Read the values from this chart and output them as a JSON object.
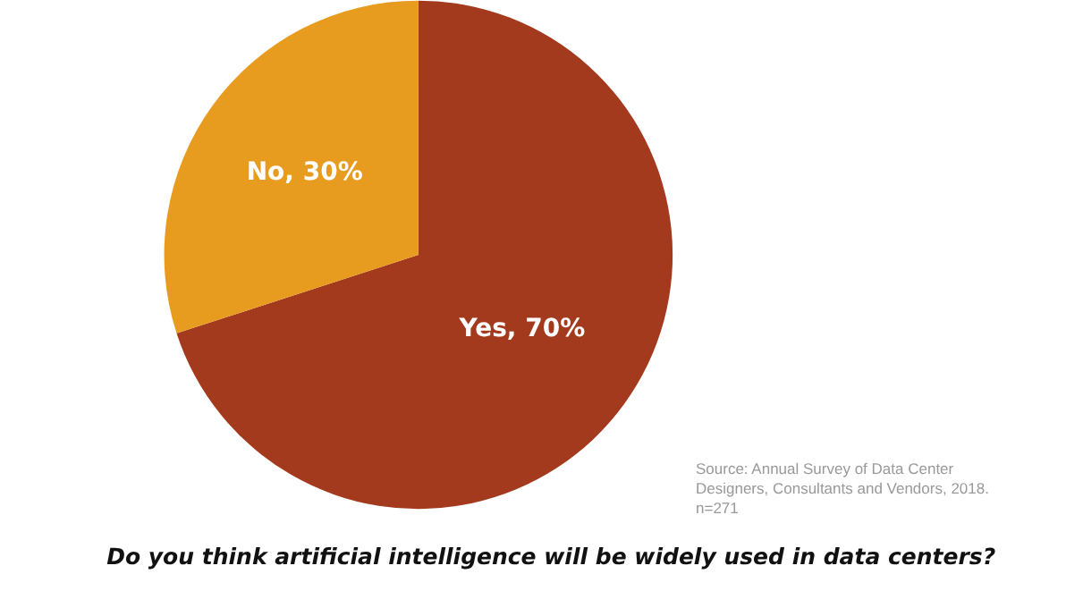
{
  "chart_data": {
    "type": "pie",
    "title": "Do you think artificial intelligence will be widely used in data centers?",
    "categories": [
      "Yes, 70%",
      "No, 30%"
    ],
    "values": [
      70,
      30
    ],
    "colors": [
      "#a33a1e",
      "#e89c1f"
    ],
    "legend": false,
    "annotations": [
      "Source: Annual Survey of Data Center Designers, Consultants and Vendors, 2018. n=271"
    ]
  }
}
